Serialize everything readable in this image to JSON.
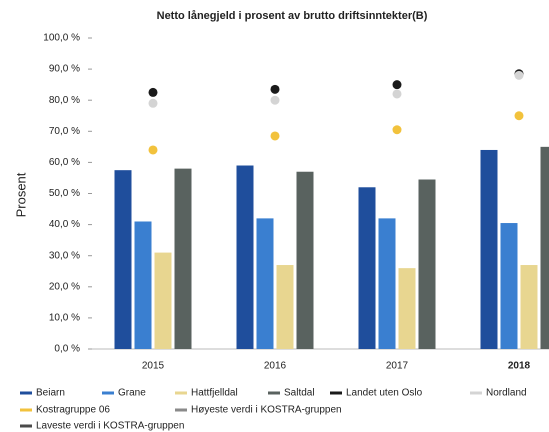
{
  "chart_data": {
    "type": "bar",
    "title": "Netto lånegjeld i prosent av brutto driftsinntekter(B)",
    "y_label": "Prosent",
    "categories": [
      "2015",
      "2016",
      "2017",
      "2018"
    ],
    "ylim": [
      0,
      100
    ],
    "yticks": [
      {
        "value": 0,
        "label": "0,0 %"
      },
      {
        "value": 10,
        "label": "10,0 %"
      },
      {
        "value": 20,
        "label": "20,0 %"
      },
      {
        "value": 30,
        "label": "30,0 %"
      },
      {
        "value": 40,
        "label": "40,0 %"
      },
      {
        "value": 50,
        "label": "50,0 %"
      },
      {
        "value": 60,
        "label": "60,0 %"
      },
      {
        "value": 70,
        "label": "70,0 %"
      },
      {
        "value": 80,
        "label": "80,0 %"
      },
      {
        "value": 90,
        "label": "90,0 %"
      },
      {
        "value": 100,
        "label": "100,0 %"
      }
    ],
    "series": [
      {
        "name": "Beiarn",
        "color": "#1f4e9c",
        "mark": "bar",
        "values": [
          57.5,
          59,
          52,
          64
        ]
      },
      {
        "name": "Grane",
        "color": "#3a7fd0",
        "mark": "bar",
        "values": [
          41,
          42,
          42,
          40.5
        ]
      },
      {
        "name": "Hattfjelldal",
        "color": "#e8d690",
        "mark": "bar",
        "values": [
          31,
          27,
          26,
          27
        ]
      },
      {
        "name": "Saltdal",
        "color": "#59625f",
        "mark": "bar",
        "values": [
          58,
          57,
          54.5,
          65
        ]
      },
      {
        "name": "Landet uten Oslo",
        "color": "#1a1a1a",
        "mark": "point",
        "values": [
          82.5,
          83.5,
          85,
          88.5
        ]
      },
      {
        "name": "Nordland",
        "color": "#d4d4d4",
        "mark": "point",
        "values": [
          79,
          80,
          82,
          88
        ]
      },
      {
        "name": "Kostragruppe 06",
        "color": "#f2c23c",
        "mark": "point",
        "values": [
          64,
          68.5,
          70.5,
          75
        ]
      },
      {
        "name": "Høyeste verdi i KOSTRA-gruppen",
        "color": "#8a8a8a",
        "mark": "point",
        "values": [
          null,
          null,
          null,
          null
        ]
      },
      {
        "name": "Laveste verdi i KOSTRA-gruppen",
        "color": "#4a4a4a",
        "mark": "point",
        "values": [
          null,
          null,
          null,
          null
        ]
      }
    ]
  }
}
